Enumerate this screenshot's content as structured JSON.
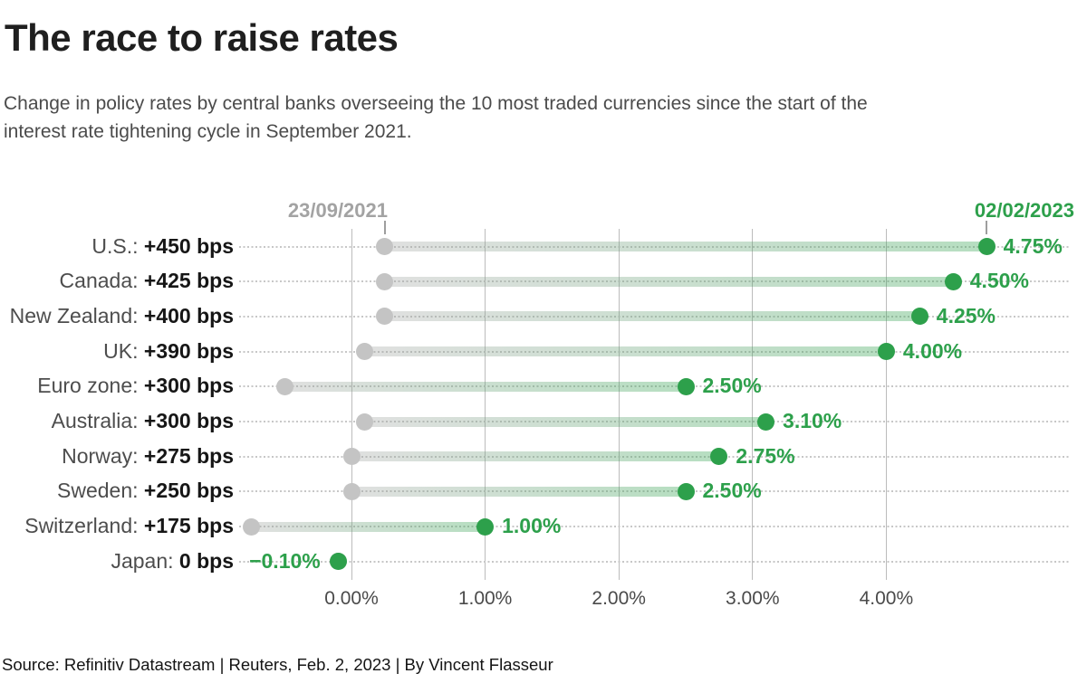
{
  "title": "The race to raise rates",
  "subtitle": "Change in policy rates by central banks overseeing the 10 most traded currencies since the start of the interest rate tightening cycle in September 2021.",
  "start_date_label": "23/09/2021",
  "end_date_label": "02/02/2023",
  "source": "Source: Refinitiv Datastream | Reuters, Feb. 2, 2023 | By Vincent Flasseur",
  "colors": {
    "green": "#2da04b",
    "gray_dot": "#c4c4c4",
    "date_gray": "#a3a3a3",
    "gridline": "#bcbcbc",
    "bar_gradient_start": "rgba(158,158,158,0.32)",
    "bar_gradient_end": "rgba(45,160,75,0.35)"
  },
  "chart_data": {
    "type": "dumbbell",
    "title": "The race to raise rates",
    "x_axis": {
      "tick_labels": [
        "0.00%",
        "1.00%",
        "2.00%",
        "3.00%",
        "4.00%"
      ],
      "tick_values": [
        0,
        1,
        2,
        3,
        4
      ],
      "range_pct": [
        -0.85,
        5.37
      ],
      "grid": "vertical"
    },
    "start_date": "23/09/2021",
    "end_date": "02/02/2023",
    "rows": [
      {
        "country": "U.S.",
        "change_label": "+450 bps",
        "start_pct": 0.25,
        "end_pct": 4.75,
        "end_label": "4.75%",
        "label_side": "right"
      },
      {
        "country": "Canada",
        "change_label": "+425 bps",
        "start_pct": 0.25,
        "end_pct": 4.5,
        "end_label": "4.50%",
        "label_side": "right"
      },
      {
        "country": "New Zealand",
        "change_label": "+400 bps",
        "start_pct": 0.25,
        "end_pct": 4.25,
        "end_label": "4.25%",
        "label_side": "right"
      },
      {
        "country": "UK",
        "change_label": "+390 bps",
        "start_pct": 0.1,
        "end_pct": 4.0,
        "end_label": "4.00%",
        "label_side": "right"
      },
      {
        "country": "Euro zone",
        "change_label": "+300 bps",
        "start_pct": -0.5,
        "end_pct": 2.5,
        "end_label": "2.50%",
        "label_side": "right"
      },
      {
        "country": "Australia",
        "change_label": "+300 bps",
        "start_pct": 0.1,
        "end_pct": 3.1,
        "end_label": "3.10%",
        "label_side": "right"
      },
      {
        "country": "Norway",
        "change_label": "+275 bps",
        "start_pct": 0.0,
        "end_pct": 2.75,
        "end_label": "2.75%",
        "label_side": "right"
      },
      {
        "country": "Sweden",
        "change_label": "+250 bps",
        "start_pct": 0.0,
        "end_pct": 2.5,
        "end_label": "2.50%",
        "label_side": "right"
      },
      {
        "country": "Switzerland",
        "change_label": "+175 bps",
        "start_pct": -0.75,
        "end_pct": 1.0,
        "end_label": "1.00%",
        "label_side": "right"
      },
      {
        "country": "Japan",
        "change_label": "0 bps",
        "start_pct": -0.1,
        "end_pct": -0.1,
        "end_label": "−0.10%",
        "label_side": "left"
      }
    ]
  }
}
